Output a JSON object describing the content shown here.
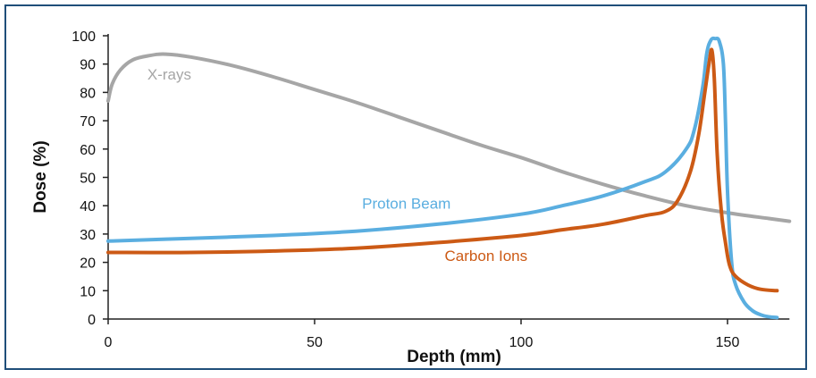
{
  "chart_data": {
    "type": "line",
    "xlabel": "Depth (mm)",
    "ylabel": "Dose (%)",
    "xlim": [
      0,
      165
    ],
    "ylim": [
      0,
      100
    ],
    "x_ticks": [
      0,
      50,
      100,
      150
    ],
    "y_ticks": [
      0,
      10,
      20,
      30,
      40,
      50,
      60,
      70,
      80,
      90,
      100
    ],
    "grid": false,
    "legend": "inline labels",
    "series": [
      {
        "name": "X-rays",
        "color": "#a6a6a6",
        "x": [
          0,
          1,
          3,
          6,
          10,
          14,
          20,
          30,
          40,
          50,
          60,
          70,
          80,
          90,
          100,
          110,
          120,
          130,
          140,
          150,
          160,
          165
        ],
        "y": [
          77,
          83,
          88,
          91.5,
          93,
          93.5,
          92.5,
          89.5,
          85.5,
          81,
          76.5,
          71.5,
          66.5,
          61.5,
          57,
          52,
          47.5,
          43.5,
          40,
          37.5,
          35.5,
          34.5
        ]
      },
      {
        "name": "Proton Beam",
        "color": "#5aaee0",
        "x": [
          0,
          20,
          40,
          60,
          80,
          100,
          110,
          120,
          130,
          135,
          140,
          142,
          144,
          145,
          146,
          147,
          148,
          149,
          149.5,
          150,
          151,
          152,
          154,
          156,
          158,
          160,
          162
        ],
        "y": [
          27.5,
          28.5,
          29.5,
          31,
          33.5,
          37,
          40,
          43.5,
          48.5,
          52,
          60,
          67,
          82,
          94,
          98.5,
          99,
          98,
          90,
          70,
          45,
          20,
          12,
          6,
          3,
          1.5,
          0.8,
          0.5
        ]
      },
      {
        "name": "Carbon Ions",
        "color": "#cc5a15",
        "x": [
          0,
          20,
          40,
          60,
          80,
          100,
          110,
          120,
          130,
          135,
          138,
          141,
          143,
          144.5,
          145.5,
          146.2,
          146.8,
          147.5,
          148.5,
          149.5,
          150.5,
          152,
          155,
          158,
          162
        ],
        "y": [
          23.5,
          23.5,
          24,
          25,
          27,
          29.5,
          31.5,
          33.5,
          36.5,
          38,
          42,
          52,
          65,
          80,
          90,
          95,
          85,
          58,
          38,
          27,
          19,
          15,
          12,
          10.5,
          10
        ]
      }
    ]
  }
}
